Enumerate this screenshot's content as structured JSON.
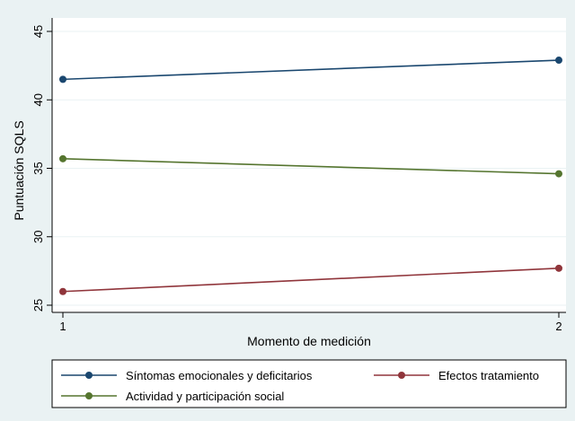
{
  "chart_data": {
    "type": "line",
    "x": [
      1,
      2
    ],
    "xticks": [
      1,
      2
    ],
    "yticks": [
      25,
      30,
      35,
      40,
      45
    ],
    "xlim": [
      1,
      2
    ],
    "ylim": [
      25,
      45
    ],
    "xlabel": "Momento de medición",
    "ylabel": "Puntuación SQLS",
    "grid": true,
    "legend_position": "bottom",
    "series": [
      {
        "name": "Síntomas emocionales y deficitarios",
        "values": [
          41.5,
          42.9
        ],
        "color": "#1a476f"
      },
      {
        "name": "Efectos tratamiento",
        "values": [
          26.0,
          27.7
        ],
        "color": "#90353b"
      },
      {
        "name": "Actividad y participación social",
        "values": [
          35.7,
          34.6
        ],
        "color": "#55752f"
      }
    ]
  }
}
